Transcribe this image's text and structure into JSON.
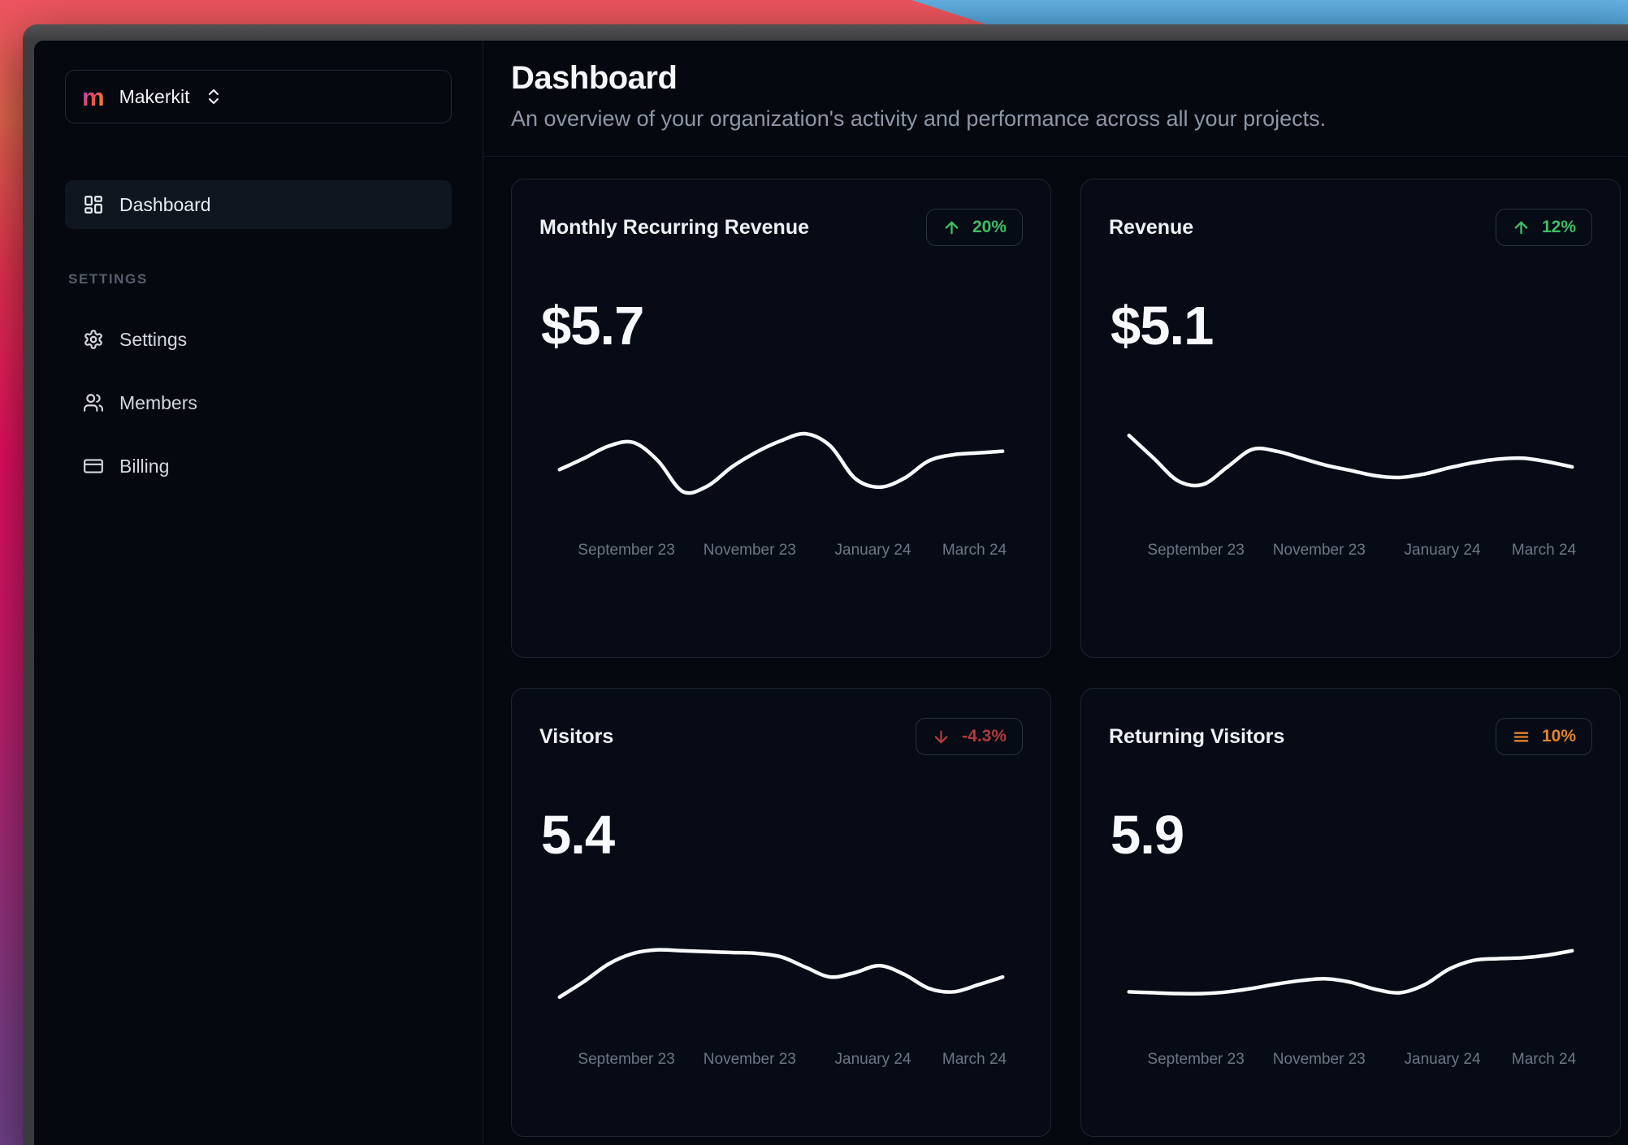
{
  "colors": {
    "content_bg": "#05080f",
    "card_bg": "#070b15",
    "card_border": "#1e2533",
    "accent_green": "#3fbf63",
    "accent_red": "#b03a3a",
    "accent_orange": "#e5842d",
    "sparkline": "#f8fafc",
    "frame_gray": "#3d3d40"
  },
  "sidebar": {
    "workspace": {
      "logo_letter": "m",
      "name": "Makerkit"
    },
    "nav": [
      {
        "label": "Dashboard"
      }
    ],
    "section_label": "SETTINGS",
    "settings_items": [
      {
        "label": "Settings"
      },
      {
        "label": "Members"
      },
      {
        "label": "Billing"
      }
    ]
  },
  "header": {
    "title": "Dashboard",
    "subtitle": "An overview of your organization's activity and performance across all your projects."
  },
  "cards": [
    {
      "title": "Monthly Recurring Revenue",
      "value": "$5.7",
      "badge": {
        "text": "20%",
        "icon": "arrow-up",
        "color": "#3fbf63"
      }
    },
    {
      "title": "Revenue",
      "value": "$5.1",
      "badge": {
        "text": "12%",
        "icon": "arrow-up",
        "color": "#3fbf63"
      }
    },
    {
      "title": "Visitors",
      "value": "5.4",
      "badge": {
        "text": "-4.3%",
        "icon": "arrow-down",
        "color": "#b03a3a"
      }
    },
    {
      "title": "Returning Visitors",
      "value": "5.9",
      "badge": {
        "text": "10%",
        "icon": "menu",
        "color": "#e5842d"
      }
    }
  ],
  "chart_data": [
    {
      "type": "line",
      "series_label": "Monthly Recurring Revenue trend",
      "x_labels": [
        "September 23",
        "November 23",
        "January 24",
        "March 24"
      ],
      "values": [
        45,
        58,
        72,
        76,
        55,
        20,
        26,
        48,
        65,
        78,
        86,
        72,
        35,
        25,
        35,
        55,
        62,
        64,
        66
      ],
      "ylim": [
        0,
        100
      ],
      "y_axis": "hidden (sparkline, relative scale)",
      "line_color": "#f8fafc"
    },
    {
      "type": "line",
      "series_label": "Revenue trend",
      "x_labels": [
        "September 23",
        "November 23",
        "January 24",
        "March 24"
      ],
      "values": [
        84,
        58,
        32,
        28,
        48,
        68,
        66,
        58,
        50,
        44,
        38,
        36,
        40,
        47,
        53,
        57,
        58,
        54,
        48
      ],
      "ylim": [
        0,
        100
      ],
      "y_axis": "hidden (sparkline, relative scale)",
      "line_color": "#f8fafc"
    },
    {
      "type": "line",
      "series_label": "Visitors trend",
      "x_labels": [
        "September 23",
        "November 23",
        "January 24",
        "March 24"
      ],
      "values": [
        24,
        42,
        62,
        74,
        78,
        77,
        76,
        75,
        74,
        70,
        58,
        47,
        52,
        60,
        50,
        34,
        30,
        38,
        47
      ],
      "ylim": [
        0,
        100
      ],
      "y_axis": "hidden (sparkline, relative scale)",
      "line_color": "#f8fafc"
    },
    {
      "type": "line",
      "series_label": "Returning Visitors trend",
      "x_labels": [
        "September 23",
        "November 23",
        "January 24",
        "March 24"
      ],
      "values": [
        30,
        29,
        28,
        28,
        30,
        34,
        39,
        43,
        45,
        41,
        33,
        29,
        38,
        56,
        66,
        68,
        69,
        72,
        77
      ],
      "ylim": [
        0,
        100
      ],
      "y_axis": "hidden (sparkline, relative scale)",
      "line_color": "#f8fafc"
    }
  ]
}
